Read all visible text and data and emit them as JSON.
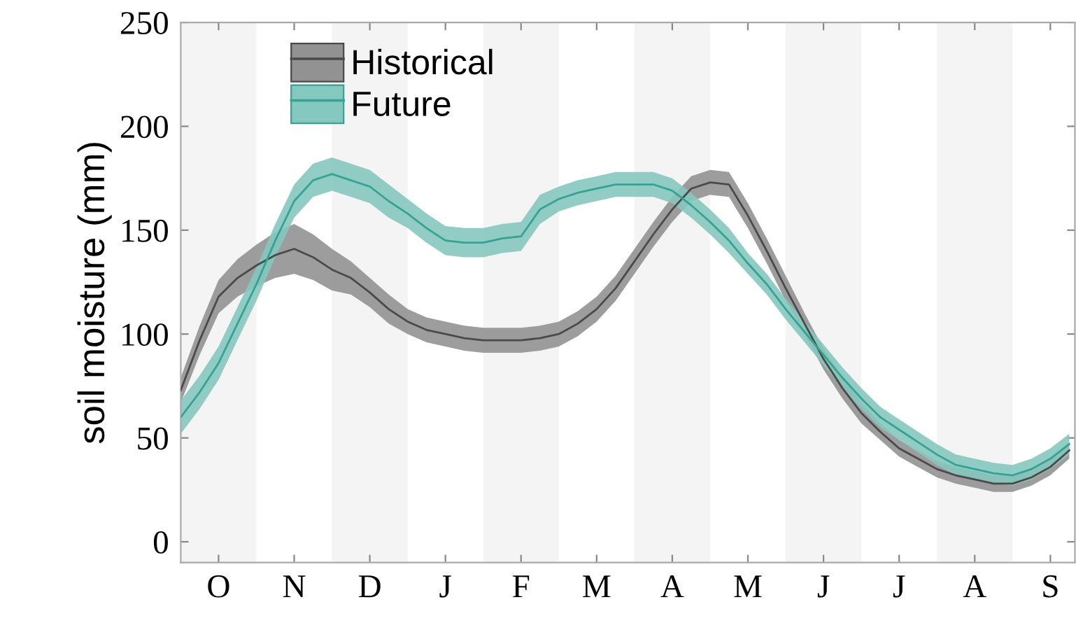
{
  "chart_data": {
    "type": "line",
    "ylabel": "soil moisture (mm)",
    "ylim": [
      -10,
      250
    ],
    "yticks": [
      0,
      50,
      100,
      150,
      200,
      250
    ],
    "categories": [
      null,
      null,
      "O",
      null,
      null,
      null,
      "N",
      null,
      null,
      null,
      "D",
      null,
      null,
      null,
      "J",
      null,
      null,
      null,
      "F",
      null,
      null,
      null,
      "M",
      null,
      null,
      null,
      "A",
      null,
      null,
      null,
      "M",
      null,
      null,
      null,
      "J",
      null,
      null,
      null,
      "J",
      null,
      null,
      null,
      "A",
      null,
      null,
      null,
      "S",
      null
    ],
    "grid": false,
    "legend": "top left",
    "series": [
      {
        "name": "Historical",
        "color": "#4a4a4a",
        "values": [
          73,
          97,
          118,
          127,
          133,
          138,
          141,
          137,
          131,
          127,
          120,
          112,
          106,
          102,
          100,
          98,
          97,
          97,
          97,
          98,
          100,
          105,
          112,
          122,
          135,
          148,
          160,
          170,
          173,
          172,
          157,
          140,
          122,
          105,
          88,
          74,
          62,
          53,
          45,
          40,
          35,
          32,
          30,
          28,
          28,
          31,
          36,
          44
        ],
        "lower": [
          67,
          90,
          110,
          118,
          123,
          127,
          129,
          126,
          121,
          119,
          113,
          105,
          100,
          96,
          94,
          92,
          91,
          91,
          91,
          92,
          94,
          99,
          106,
          116,
          129,
          142,
          154,
          164,
          167,
          166,
          151,
          134,
          116,
          100,
          83,
          69,
          57,
          49,
          41,
          36,
          31,
          28,
          26,
          24,
          24,
          27,
          32,
          40
        ],
        "upper": [
          79,
          104,
          126,
          136,
          143,
          149,
          153,
          148,
          141,
          135,
          127,
          119,
          112,
          108,
          106,
          104,
          103,
          103,
          103,
          104,
          106,
          111,
          118,
          128,
          141,
          154,
          166,
          176,
          179,
          178,
          163,
          146,
          128,
          110,
          93,
          79,
          67,
          57,
          49,
          44,
          39,
          36,
          34,
          32,
          32,
          35,
          40,
          48
        ]
      },
      {
        "name": "Future",
        "color": "#33a394",
        "values": [
          60,
          72,
          86,
          105,
          124,
          145,
          164,
          174,
          177,
          174,
          171,
          164,
          158,
          151,
          145,
          144,
          144,
          146,
          147,
          160,
          165,
          168,
          170,
          172,
          172,
          172,
          169,
          162,
          154,
          145,
          134,
          124,
          112,
          101,
          90,
          79,
          69,
          60,
          54,
          48,
          42,
          37,
          35,
          33,
          32,
          35,
          40,
          47
        ],
        "lower": [
          52,
          64,
          78,
          97,
          116,
          137,
          156,
          166,
          169,
          166,
          163,
          156,
          151,
          144,
          138,
          137,
          137,
          139,
          140,
          153,
          159,
          162,
          164,
          166,
          166,
          166,
          163,
          156,
          148,
          139,
          129,
          119,
          107,
          96,
          85,
          74,
          64,
          55,
          49,
          43,
          37,
          32,
          30,
          28,
          27,
          30,
          35,
          42
        ],
        "upper": [
          68,
          80,
          94,
          113,
          132,
          153,
          172,
          182,
          185,
          182,
          179,
          172,
          165,
          158,
          152,
          151,
          151,
          153,
          154,
          167,
          171,
          174,
          176,
          178,
          178,
          178,
          175,
          168,
          160,
          151,
          139,
          129,
          117,
          106,
          95,
          84,
          74,
          65,
          59,
          53,
          47,
          42,
          40,
          38,
          37,
          40,
          45,
          52
        ]
      }
    ]
  }
}
